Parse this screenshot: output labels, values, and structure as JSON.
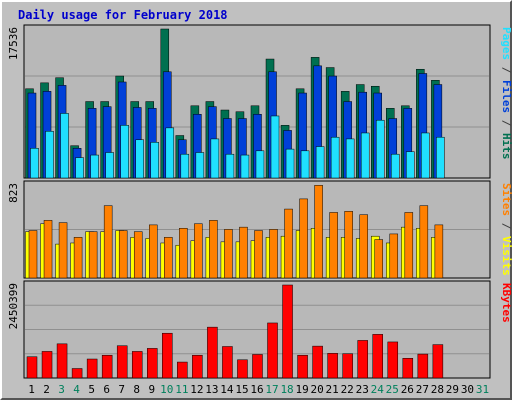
{
  "title": "Daily usage for February 2018",
  "colors": {
    "hits": "#007050",
    "files": "#0040d8",
    "pages": "#20e0ff",
    "visits": "#ffff00",
    "sites": "#ff8000",
    "kbytes": "#ff0000",
    "weekend_day": "#00805c",
    "weekday": "#000000"
  },
  "chart_data": [
    {
      "type": "bar",
      "title": "Daily usage for February 2018",
      "x": [
        "1",
        "2",
        "3",
        "4",
        "5",
        "6",
        "7",
        "8",
        "9",
        "10",
        "11",
        "12",
        "13",
        "14",
        "15",
        "16",
        "17",
        "18",
        "19",
        "20",
        "21",
        "22",
        "23",
        "24",
        "25",
        "26",
        "27",
        "28",
        "29",
        "30",
        "31"
      ],
      "weekend_days": [
        "3",
        "4",
        "10",
        "11",
        "17",
        "18",
        "24",
        "25",
        "31"
      ],
      "ymax_label": "17536",
      "right_label_parts": [
        {
          "text": "Pages",
          "color": "#20e0ff"
        },
        {
          "text": " / ",
          "color": "#404040"
        },
        {
          "text": "Files",
          "color": "#0040d8"
        },
        {
          "text": " / ",
          "color": "#404040"
        },
        {
          "text": "Hits",
          "color": "#007050"
        }
      ],
      "ylim": [
        0,
        17536
      ],
      "series": [
        {
          "name": "Hits",
          "values": [
            10500,
            11200,
            11800,
            3800,
            9000,
            9000,
            12000,
            9000,
            9000,
            17536,
            5000,
            8500,
            9000,
            8000,
            7800,
            8500,
            14000,
            6200,
            10500,
            14200,
            13000,
            10200,
            11000,
            10800,
            8200,
            8500,
            12800,
            11500,
            null,
            null,
            null
          ]
        },
        {
          "name": "Files",
          "values": [
            10000,
            10200,
            10900,
            3500,
            8200,
            8400,
            11300,
            8300,
            8200,
            12500,
            4500,
            7500,
            8400,
            7000,
            7000,
            7500,
            12500,
            5600,
            10000,
            13200,
            12000,
            9000,
            10100,
            10000,
            7000,
            8200,
            12300,
            11000,
            null,
            null,
            null
          ]
        },
        {
          "name": "Pages",
          "values": [
            3500,
            5500,
            7600,
            2400,
            2700,
            3000,
            6200,
            4500,
            4200,
            5900,
            2800,
            3000,
            4600,
            2800,
            2700,
            3200,
            7300,
            3400,
            3200,
            3700,
            4800,
            4600,
            5300,
            6800,
            2800,
            3100,
            5300,
            4800,
            null,
            null,
            null
          ]
        }
      ]
    },
    {
      "type": "bar",
      "ymax_label": "823",
      "right_label_parts": [
        {
          "text": "Sites",
          "color": "#ff8000"
        },
        {
          "text": " / ",
          "color": "#404040"
        },
        {
          "text": "Visits",
          "color": "#ffff00"
        }
      ],
      "ylim": [
        0,
        823
      ],
      "series": [
        {
          "name": "Sites",
          "values": [
            420,
            510,
            490,
            360,
            410,
            640,
            420,
            410,
            470,
            360,
            440,
            480,
            510,
            430,
            450,
            420,
            430,
            610,
            700,
            820,
            580,
            590,
            560,
            340,
            390,
            580,
            640,
            470,
            null,
            null,
            null
          ]
        },
        {
          "name": "Visits",
          "values": [
            410,
            480,
            300,
            310,
            410,
            410,
            420,
            360,
            350,
            310,
            290,
            330,
            360,
            320,
            320,
            330,
            360,
            370,
            420,
            440,
            360,
            360,
            350,
            370,
            310,
            450,
            440,
            360,
            null,
            null,
            null
          ]
        }
      ]
    },
    {
      "type": "bar",
      "ymax_label": "2450399",
      "right_label_parts": [
        {
          "text": "KBytes",
          "color": "#ff0000"
        }
      ],
      "ylim": [
        0,
        2450399
      ],
      "series": [
        {
          "name": "KBytes",
          "values": [
            560000,
            700000,
            900000,
            250000,
            500000,
            600000,
            850000,
            700000,
            780000,
            1180000,
            420000,
            600000,
            1340000,
            830000,
            480000,
            620000,
            1450000,
            2450399,
            600000,
            840000,
            650000,
            640000,
            990000,
            1150000,
            950000,
            520000,
            630000,
            880000,
            null,
            null,
            null
          ]
        }
      ]
    }
  ]
}
